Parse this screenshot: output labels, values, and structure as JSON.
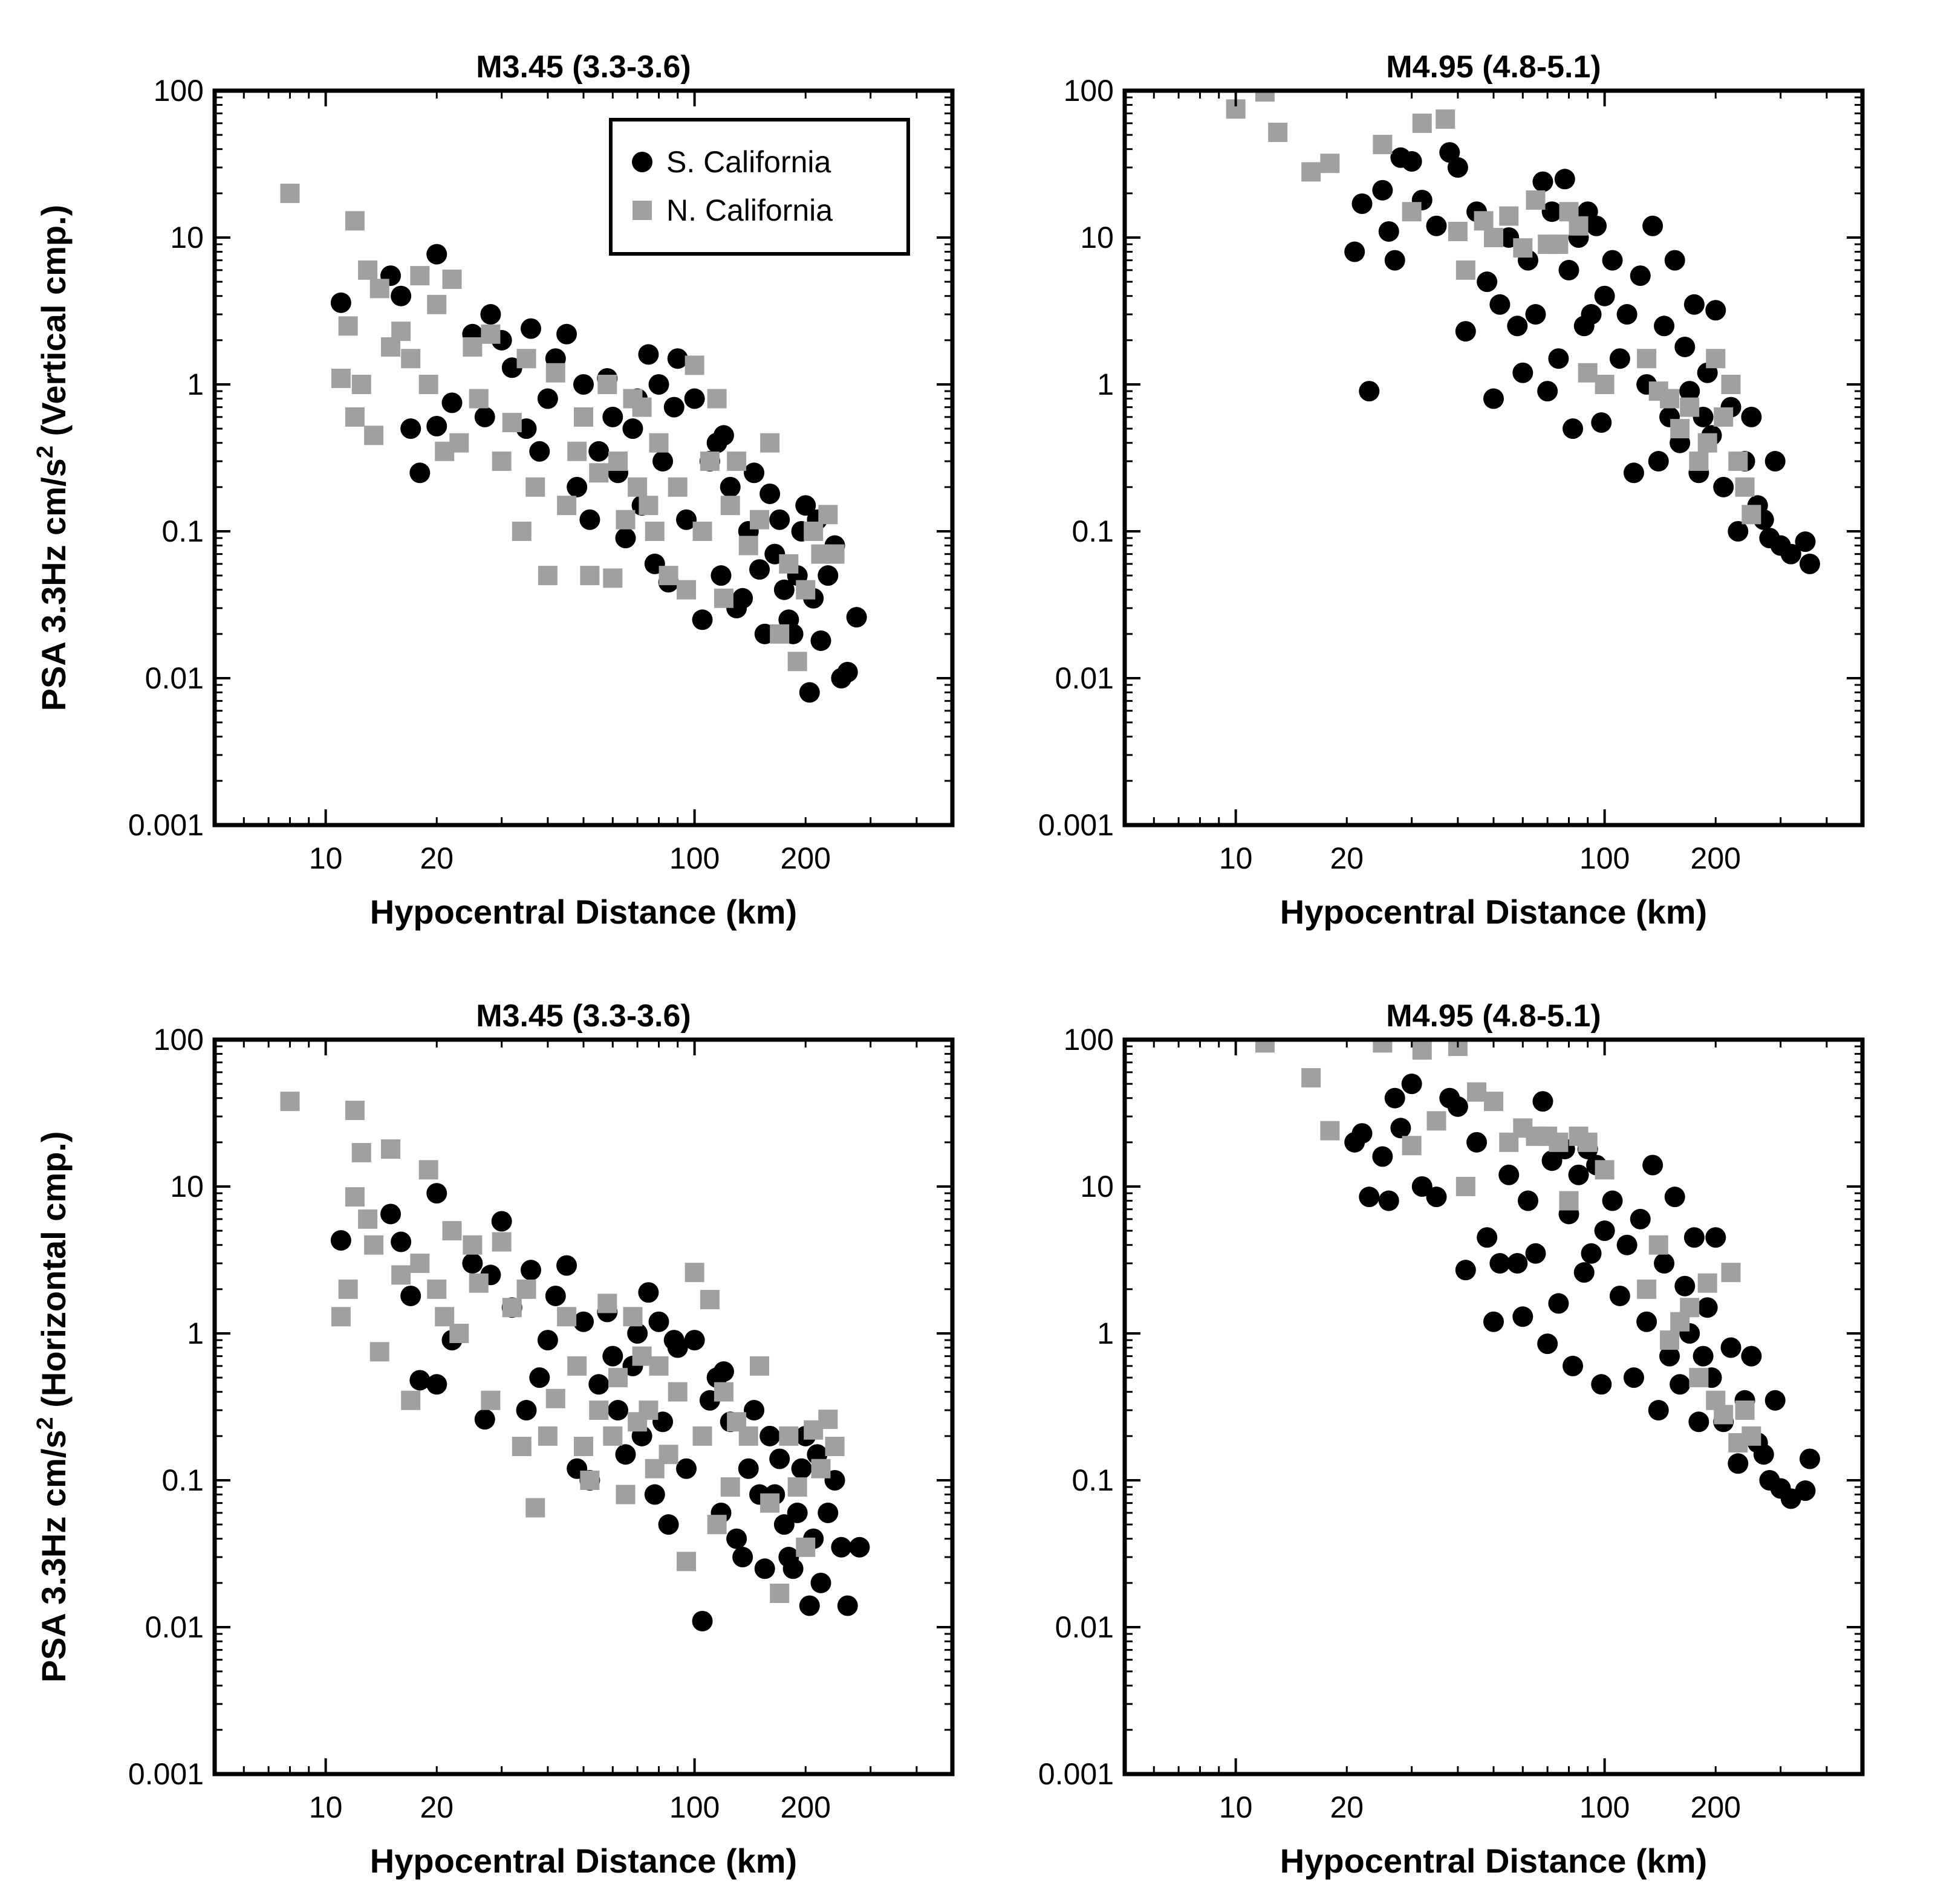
{
  "chart_data": [
    {
      "type": "scatter",
      "title": "M3.45 (3.3-3.6)",
      "xlabel": "Hypocentral Distance (km)",
      "ylabel": "PSA 3.3Hz cm/s² (Vertical cmp.)",
      "ylabel_main": "PSA 3.3Hz cm/s",
      "ylabel_sup": "2",
      "ylabel_tail": " (Vertical cmp.)",
      "xscale": "log",
      "yscale": "log",
      "xlim": [
        5,
        500
      ],
      "ylim": [
        0.001,
        100
      ],
      "xticks": [
        "10",
        "20",
        "100",
        "200"
      ],
      "yticks": [
        "100",
        "10",
        "1",
        "0.1",
        "0.01",
        "0.001"
      ],
      "legend": {
        "placement": "top-right",
        "entries": [
          "S. California",
          "N. California"
        ]
      },
      "series": [
        {
          "name": "S. California",
          "color": "#000000",
          "marker": "circle",
          "x": [
            11,
            15,
            16,
            17,
            18,
            20,
            20,
            22,
            25,
            27,
            28,
            30,
            32,
            35,
            36,
            38,
            40,
            42,
            45,
            48,
            50,
            52,
            55,
            58,
            60,
            62,
            65,
            68,
            70,
            72,
            75,
            78,
            80,
            82,
            85,
            88,
            90,
            95,
            100,
            105,
            110,
            115,
            118,
            120,
            125,
            130,
            135,
            140,
            145,
            150,
            155,
            160,
            165,
            170,
            175,
            180,
            185,
            190,
            195,
            200,
            205,
            210,
            215,
            220,
            230,
            240,
            250,
            260,
            275
          ],
          "y": [
            3.6,
            5.5,
            4.0,
            0.5,
            0.25,
            0.52,
            7.7,
            0.75,
            2.2,
            0.6,
            3.0,
            2.0,
            1.3,
            0.5,
            2.4,
            0.35,
            0.8,
            1.5,
            2.2,
            0.2,
            1.0,
            0.12,
            0.35,
            1.1,
            0.6,
            0.25,
            0.09,
            0.5,
            0.8,
            0.15,
            1.6,
            0.06,
            1.0,
            0.3,
            0.045,
            0.7,
            1.5,
            0.12,
            0.8,
            0.025,
            0.3,
            0.4,
            0.05,
            0.45,
            0.2,
            0.03,
            0.035,
            0.1,
            0.25,
            0.055,
            0.02,
            0.18,
            0.07,
            0.12,
            0.04,
            0.025,
            0.02,
            0.05,
            0.1,
            0.15,
            0.008,
            0.035,
            0.12,
            0.018,
            0.05,
            0.08,
            0.01,
            0.011,
            0.026
          ]
        },
        {
          "name": "N. California",
          "color": "#a0a0a0",
          "marker": "square",
          "x": [
            8,
            11,
            11.5,
            12,
            12,
            12.5,
            13,
            13.5,
            14,
            15,
            16,
            17,
            18,
            19,
            20,
            21,
            22,
            23,
            25,
            26,
            28,
            30,
            32,
            34,
            35,
            37,
            40,
            42,
            45,
            48,
            50,
            52,
            55,
            58,
            60,
            62,
            65,
            68,
            70,
            72,
            75,
            78,
            80,
            85,
            90,
            95,
            100,
            105,
            110,
            115,
            120,
            125,
            130,
            140,
            150,
            160,
            170,
            180,
            190,
            200,
            210,
            220,
            230,
            240
          ],
          "y": [
            20,
            1.1,
            2.5,
            13,
            0.6,
            1.0,
            6.0,
            0.45,
            4.5,
            1.8,
            2.3,
            1.5,
            5.5,
            1.0,
            3.5,
            0.35,
            5.2,
            0.4,
            1.8,
            0.8,
            2.2,
            0.3,
            0.55,
            0.1,
            1.5,
            0.2,
            0.05,
            1.2,
            0.15,
            0.35,
            0.6,
            0.05,
            0.25,
            1.0,
            0.048,
            0.3,
            0.12,
            0.8,
            0.2,
            0.7,
            0.15,
            0.1,
            0.4,
            0.05,
            0.2,
            0.04,
            1.35,
            0.1,
            0.3,
            0.8,
            0.035,
            0.15,
            0.3,
            0.08,
            0.12,
            0.4,
            0.02,
            0.06,
            0.013,
            0.04,
            0.1,
            0.07,
            0.13,
            0.07
          ]
        }
      ]
    },
    {
      "type": "scatter",
      "title": "M4.95 (4.8-5.1)",
      "xlabel": "Hypocentral Distance (km)",
      "ylabel": "",
      "xscale": "log",
      "yscale": "log",
      "xlim": [
        5,
        500
      ],
      "ylim": [
        0.001,
        100
      ],
      "xticks": [
        "10",
        "20",
        "100",
        "200"
      ],
      "yticks": [
        "100",
        "10",
        "1",
        "0.1",
        "0.01",
        "0.001"
      ],
      "series": [
        {
          "name": "S. California",
          "color": "#000000",
          "marker": "circle",
          "x": [
            21,
            22,
            23,
            25,
            26,
            27,
            28,
            30,
            32,
            35,
            38,
            40,
            42,
            45,
            48,
            50,
            52,
            55,
            58,
            60,
            62,
            65,
            68,
            70,
            72,
            75,
            78,
            80,
            82,
            85,
            88,
            90,
            92,
            95,
            98,
            100,
            105,
            110,
            115,
            120,
            125,
            130,
            135,
            140,
            145,
            150,
            155,
            160,
            165,
            170,
            175,
            180,
            185,
            190,
            195,
            200,
            210,
            220,
            230,
            240,
            250,
            260,
            270,
            280,
            290,
            300,
            320,
            350,
            360
          ],
          "y": [
            8.0,
            17,
            0.9,
            21,
            11,
            7.0,
            35,
            33,
            18,
            12,
            38,
            30,
            2.3,
            15,
            5.0,
            0.8,
            3.5,
            10,
            2.5,
            1.2,
            7.0,
            3.0,
            24,
            0.9,
            15,
            1.5,
            25,
            6,
            0.5,
            10,
            2.5,
            15,
            3.0,
            12,
            0.55,
            4.0,
            7.0,
            1.5,
            3.0,
            0.25,
            5.5,
            1.0,
            12,
            0.3,
            2.5,
            0.6,
            7.0,
            0.4,
            1.8,
            0.9,
            3.5,
            0.25,
            0.6,
            1.2,
            0.45,
            3.2,
            0.2,
            0.7,
            0.1,
            0.3,
            0.6,
            0.15,
            0.12,
            0.09,
            0.3,
            0.08,
            0.07,
            0.085,
            0.06
          ]
        },
        {
          "name": "N. California",
          "color": "#a0a0a0",
          "marker": "square",
          "x": [
            10,
            12,
            13,
            16,
            18,
            25,
            30,
            32,
            37,
            40,
            42,
            47,
            50,
            55,
            60,
            65,
            70,
            75,
            80,
            85,
            90,
            100,
            130,
            140,
            150,
            160,
            170,
            180,
            190,
            200,
            210,
            220,
            230,
            240,
            250
          ],
          "y": [
            75,
            98,
            52,
            28,
            32,
            43,
            15,
            60,
            64,
            11,
            6,
            13,
            10,
            14,
            8.5,
            18,
            9.0,
            9,
            15,
            12,
            1.2,
            1.0,
            1.5,
            0.9,
            0.8,
            0.5,
            0.7,
            0.3,
            0.4,
            1.5,
            0.6,
            1.0,
            0.3,
            0.2,
            0.13
          ]
        }
      ]
    },
    {
      "type": "scatter",
      "title": "M3.45 (3.3-3.6)",
      "xlabel": "Hypocentral Distance (km)",
      "ylabel": "PSA 3.3Hz cm/s² (Horizontal cmp.)",
      "ylabel_main": "PSA 3.3Hz cm/s",
      "ylabel_sup": "2",
      "ylabel_tail": " (Horizontal cmp.)",
      "xscale": "log",
      "yscale": "log",
      "xlim": [
        5,
        500
      ],
      "ylim": [
        0.001,
        100
      ],
      "xticks": [
        "10",
        "20",
        "100",
        "200"
      ],
      "yticks": [
        "100",
        "10",
        "1",
        "0.1",
        "0.01",
        "0.001"
      ],
      "series": [
        {
          "name": "S. California",
          "color": "#000000",
          "marker": "circle",
          "x": [
            11,
            15,
            16,
            17,
            18,
            20,
            20,
            22,
            25,
            27,
            28,
            30,
            32,
            35,
            36,
            38,
            40,
            42,
            45,
            48,
            50,
            52,
            55,
            58,
            60,
            62,
            65,
            68,
            70,
            72,
            75,
            78,
            80,
            82,
            85,
            88,
            90,
            95,
            100,
            105,
            110,
            115,
            118,
            120,
            125,
            130,
            135,
            140,
            145,
            150,
            155,
            160,
            165,
            170,
            175,
            180,
            185,
            190,
            195,
            200,
            205,
            210,
            215,
            220,
            230,
            240,
            250,
            260,
            280
          ],
          "y": [
            4.3,
            6.5,
            4.2,
            1.8,
            0.48,
            0.45,
            9.0,
            0.9,
            3.0,
            0.26,
            2.5,
            5.8,
            1.5,
            0.3,
            2.7,
            0.5,
            0.9,
            1.8,
            2.9,
            0.12,
            1.2,
            0.1,
            0.45,
            1.4,
            0.7,
            0.3,
            0.15,
            0.6,
            1.0,
            0.2,
            1.9,
            0.08,
            1.2,
            0.25,
            0.05,
            0.9,
            0.8,
            0.12,
            0.9,
            0.011,
            0.35,
            0.5,
            0.06,
            0.55,
            0.25,
            0.04,
            0.03,
            0.12,
            0.3,
            0.08,
            0.025,
            0.2,
            0.08,
            0.14,
            0.05,
            0.03,
            0.025,
            0.06,
            0.12,
            0.2,
            0.014,
            0.04,
            0.15,
            0.02,
            0.06,
            0.1,
            0.035,
            0.014,
            0.035
          ]
        },
        {
          "name": "N. California",
          "color": "#a0a0a0",
          "marker": "square",
          "x": [
            8,
            11,
            11.5,
            12,
            12,
            12.5,
            13,
            13.5,
            14,
            15,
            16,
            17,
            18,
            19,
            20,
            21,
            22,
            23,
            25,
            26,
            28,
            30,
            32,
            34,
            35,
            37,
            40,
            42,
            45,
            48,
            50,
            52,
            55,
            58,
            60,
            62,
            65,
            68,
            70,
            72,
            75,
            78,
            80,
            85,
            90,
            95,
            100,
            105,
            110,
            115,
            120,
            125,
            130,
            140,
            150,
            160,
            170,
            180,
            190,
            200,
            210,
            220,
            230,
            240
          ],
          "y": [
            38,
            1.3,
            2.0,
            33,
            8.5,
            17,
            6.0,
            4.0,
            0.75,
            18,
            2.5,
            0.35,
            3.0,
            13,
            2.0,
            1.3,
            5.0,
            1.0,
            4.0,
            2.2,
            0.35,
            4.2,
            1.5,
            0.17,
            2.0,
            0.065,
            0.2,
            0.36,
            1.3,
            0.6,
            0.17,
            0.1,
            0.3,
            1.6,
            0.2,
            0.5,
            0.08,
            1.3,
            0.25,
            0.7,
            0.3,
            0.12,
            0.6,
            0.15,
            0.4,
            0.028,
            2.6,
            0.2,
            1.7,
            0.05,
            0.4,
            0.09,
            0.25,
            0.2,
            0.6,
            0.07,
            0.017,
            0.2,
            0.09,
            0.035,
            0.22,
            0.12,
            0.26,
            0.17
          ]
        }
      ]
    },
    {
      "type": "scatter",
      "title": "M4.95 (4.8-5.1)",
      "xlabel": "Hypocentral Distance (km)",
      "ylabel": "",
      "xscale": "log",
      "yscale": "log",
      "xlim": [
        5,
        500
      ],
      "ylim": [
        0.001,
        100
      ],
      "xticks": [
        "10",
        "20",
        "100",
        "200"
      ],
      "yticks": [
        "100",
        "10",
        "1",
        "0.1",
        "0.01",
        "0.001"
      ],
      "series": [
        {
          "name": "S. California",
          "color": "#000000",
          "marker": "circle",
          "x": [
            21,
            22,
            23,
            25,
            26,
            27,
            28,
            30,
            32,
            35,
            38,
            40,
            42,
            45,
            48,
            50,
            52,
            55,
            58,
            60,
            62,
            65,
            68,
            70,
            72,
            75,
            78,
            80,
            82,
            85,
            88,
            90,
            92,
            95,
            98,
            100,
            105,
            110,
            115,
            120,
            125,
            130,
            135,
            140,
            145,
            150,
            155,
            160,
            165,
            170,
            175,
            180,
            185,
            190,
            195,
            200,
            210,
            220,
            230,
            240,
            250,
            260,
            270,
            280,
            290,
            300,
            320,
            350,
            360
          ],
          "y": [
            20,
            23,
            8.5,
            16,
            8.0,
            40,
            25,
            50,
            10,
            8.5,
            40,
            35,
            2.7,
            20,
            4.5,
            1.2,
            3.0,
            12,
            3.0,
            1.3,
            8.0,
            3.5,
            38,
            0.85,
            15,
            1.6,
            18,
            6.5,
            0.6,
            12,
            2.6,
            18,
            3.5,
            14,
            0.45,
            5.0,
            8.0,
            1.8,
            4.0,
            0.5,
            6.0,
            1.2,
            14,
            0.3,
            3.0,
            0.7,
            8.5,
            0.45,
            2.1,
            1.0,
            4.5,
            0.25,
            0.7,
            1.5,
            0.5,
            4.5,
            0.25,
            0.8,
            0.13,
            0.35,
            0.7,
            0.18,
            0.15,
            0.1,
            0.35,
            0.088,
            0.075,
            0.085,
            0.14
          ]
        },
        {
          "name": "N. California",
          "color": "#a0a0a0",
          "marker": "square",
          "x": [
            12,
            16,
            18,
            25,
            30,
            32,
            35,
            40,
            42,
            45,
            50,
            55,
            60,
            65,
            70,
            75,
            80,
            85,
            90,
            100,
            130,
            140,
            150,
            160,
            170,
            180,
            190,
            200,
            210,
            220,
            230,
            240,
            250
          ],
          "y": [
            95,
            55,
            24,
            95,
            19,
            85,
            28,
            90,
            10,
            44,
            38,
            20,
            25,
            22,
            22,
            20,
            8,
            22,
            20,
            13,
            2.0,
            4.0,
            0.9,
            1.2,
            1.5,
            0.5,
            2.2,
            0.35,
            0.28,
            2.6,
            0.18,
            0.3,
            0.2
          ]
        }
      ]
    }
  ]
}
